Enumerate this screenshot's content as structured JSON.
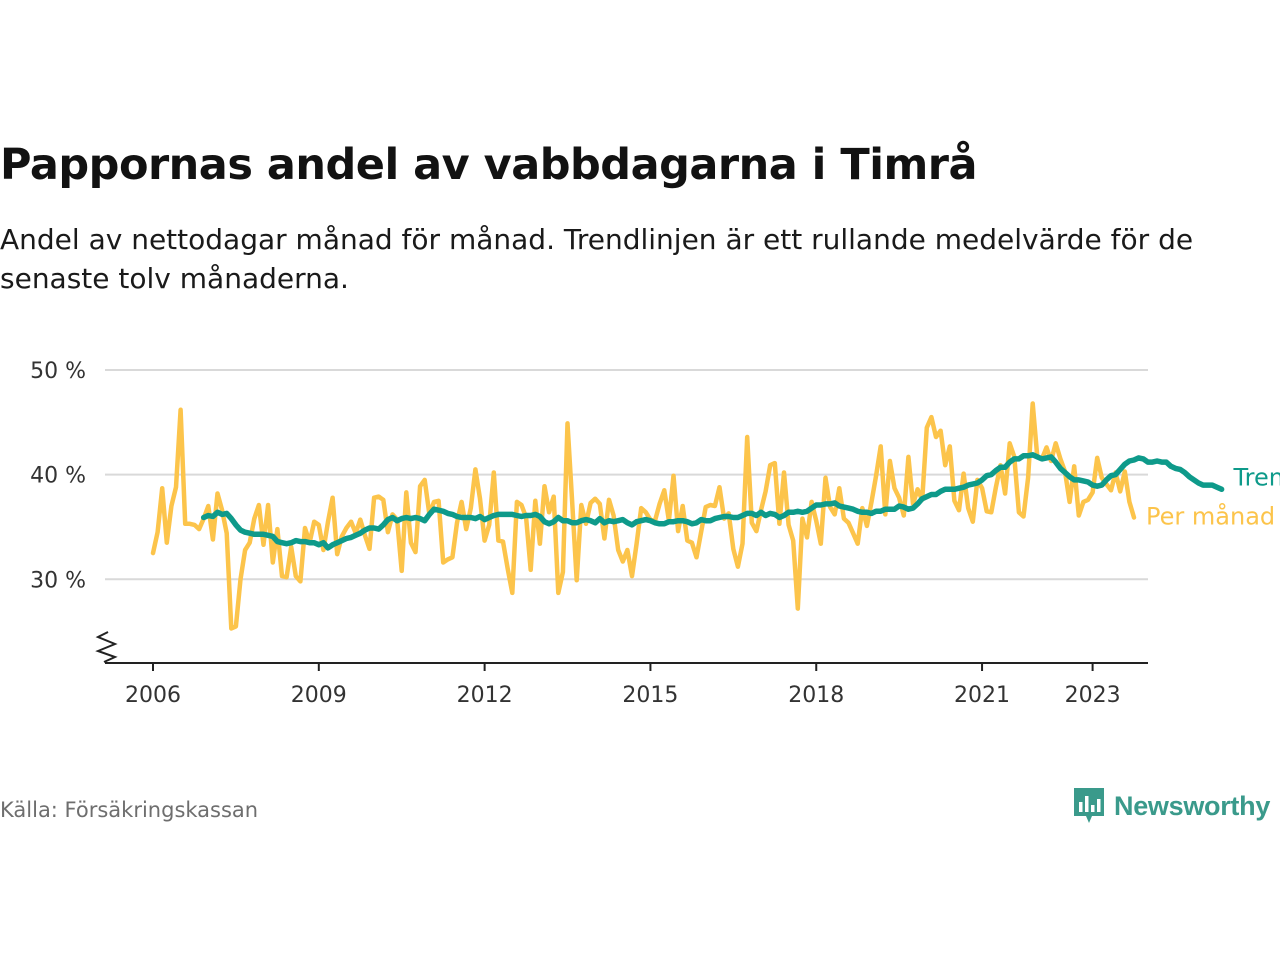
{
  "title": "Pappornas andel av vabbdagarna i Timrå",
  "subtitle": "Andel av nettodagar månad för månad. Trendlinjen är ett rullande medelvärde för de senaste tolv månaderna.",
  "source": "Källa: Försäkringskassan",
  "brand": "Newsworthy",
  "colors": {
    "monthly": "#fcc44b",
    "trend": "#0e9a8a",
    "grid": "#d9d9d9",
    "axis": "#222222",
    "brand": "#3a9a8b"
  },
  "chart_data": {
    "type": "line",
    "ylim": [
      22,
      50
    ],
    "yticks": [
      30,
      40,
      50
    ],
    "ytick_labels": [
      "30 %",
      "40 %",
      "50 %"
    ],
    "xlim": [
      2005.85,
      2025.0
    ],
    "xticks": [
      2006,
      2009,
      2012,
      2015,
      2018,
      2021,
      2023
    ],
    "xtick_labels": [
      "2006",
      "2009",
      "2012",
      "2015",
      "2018",
      "2021",
      "2023"
    ],
    "axis_break": true,
    "grid": true,
    "series": [
      {
        "name": "Per månad",
        "start": "2006-01",
        "values": [
          32.5,
          34.5,
          38.7,
          33.5,
          37,
          38.8,
          46.2,
          35.3,
          35.3,
          35.2,
          34.8,
          35.8,
          37,
          33.8,
          38.2,
          36.6,
          34.4,
          25.3,
          25.5,
          30,
          32.8,
          33.5,
          35.8,
          37.1,
          33.3,
          37.1,
          31.6,
          34.8,
          30.3,
          30.2,
          33.1,
          30.3,
          29.8,
          34.9,
          33.5,
          35.5,
          35.2,
          32.8,
          35.5,
          37.8,
          32.4,
          34.1,
          34.9,
          35.5,
          34.4,
          35.7,
          34.2,
          32.9,
          37.8,
          37.9,
          37.6,
          34.5,
          36.2,
          35.7,
          30.8,
          38.3,
          33.5,
          32.6,
          38.9,
          39.5,
          36.2,
          37.4,
          37.5,
          31.6,
          31.9,
          32.1,
          35.4,
          37.4,
          34.8,
          36.8,
          40.5,
          37.7,
          33.7,
          35.2,
          40.2,
          33.7,
          33.6,
          31,
          28.7,
          37.4,
          37.1,
          35.9,
          30.9,
          37.5,
          33.4,
          38.9,
          36.4,
          37.9,
          28.7,
          30.7,
          44.9,
          37.5,
          29.9,
          37.1,
          35.3,
          37.3,
          37.7,
          37.2,
          33.9,
          37.6,
          36.1,
          32.8,
          31.7,
          32.8,
          30.3,
          33.4,
          36.8,
          36.4,
          35.7,
          35.6,
          37.2,
          38.5,
          35.6,
          39.9,
          34.6,
          37,
          33.7,
          33.5,
          32.1,
          34.5,
          36.9,
          37.1,
          37,
          38.8,
          35.8,
          36.3,
          32.9,
          31.2,
          33.4,
          43.6,
          35.4,
          34.6,
          36.6,
          38.4,
          40.9,
          41.1,
          35.3,
          40.2,
          35.2,
          33.7,
          27.2,
          35.8,
          34,
          37.4,
          35.6,
          33.4,
          39.7,
          36.9,
          36.2,
          38.7,
          35.8,
          35.4,
          34.4,
          33.4,
          36.8,
          35.1,
          37.4,
          39.9,
          42.7,
          36.2,
          41.3,
          38.7,
          37.8,
          36.1,
          41.7,
          37.2,
          38.6,
          37.6,
          44.5,
          45.5,
          43.6,
          44.2,
          40.9,
          42.7,
          37.5,
          36.6,
          40.1,
          36.8,
          35.5,
          39.5,
          38.7,
          36.5,
          36.4,
          38.8,
          40.9,
          38.2,
          43,
          41.7,
          36.4,
          36,
          39.7,
          46.8,
          41.7,
          41.5,
          42.6,
          41.3,
          43,
          41.5,
          40.3,
          37.4,
          40.8,
          36.1,
          37.4,
          37.6,
          38.3,
          41.6,
          39.7,
          39.1,
          38.5,
          40.2,
          38.4,
          40.3,
          37.4,
          35.9
        ]
      },
      {
        "name": "Trend",
        "start": "2006-12",
        "values": [
          35.9,
          36.1,
          36.0,
          36.4,
          36.2,
          36.3,
          35.8,
          35.2,
          34.7,
          34.5,
          34.4,
          34.3,
          34.3,
          34.3,
          34.2,
          34.1,
          33.6,
          33.5,
          33.4,
          33.5,
          33.7,
          33.6,
          33.6,
          33.5,
          33.5,
          33.3,
          33.5,
          33.0,
          33.3,
          33.5,
          33.7,
          33.9,
          34.0,
          34.2,
          34.4,
          34.7,
          34.9,
          34.9,
          34.8,
          35.2,
          35.7,
          35.9,
          35.6,
          35.8,
          35.9,
          35.8,
          35.9,
          35.8,
          35.6,
          36.2,
          36.7,
          36.6,
          36.5,
          36.3,
          36.2,
          36.0,
          35.9,
          35.9,
          35.9,
          35.8,
          36.0,
          35.7,
          35.9,
          36.1,
          36.2,
          36.2,
          36.2,
          36.2,
          36.1,
          36.0,
          36.1,
          36.1,
          36.2,
          36.0,
          35.5,
          35.3,
          35.5,
          35.9,
          35.6,
          35.6,
          35.4,
          35.4,
          35.6,
          35.7,
          35.6,
          35.4,
          35.8,
          35.4,
          35.6,
          35.5,
          35.6,
          35.7,
          35.4,
          35.2,
          35.5,
          35.6,
          35.7,
          35.6,
          35.4,
          35.3,
          35.3,
          35.5,
          35.5,
          35.6,
          35.6,
          35.5,
          35.3,
          35.4,
          35.7,
          35.6,
          35.6,
          35.8,
          35.9,
          36.0,
          36.0,
          35.9,
          35.9,
          36.1,
          36.3,
          36.3,
          36.1,
          36.4,
          36.1,
          36.3,
          36.2,
          35.9,
          36.1,
          36.4,
          36.4,
          36.5,
          36.4,
          36.5,
          36.8,
          37.1,
          37.1,
          37.2,
          37.2,
          37.3,
          37.0,
          36.9,
          36.8,
          36.7,
          36.5,
          36.4,
          36.4,
          36.3,
          36.5,
          36.5,
          36.7,
          36.7,
          36.7,
          37.0,
          36.9,
          36.7,
          36.8,
          37.2,
          37.7,
          37.9,
          38.1,
          38.1,
          38.4,
          38.6,
          38.6,
          38.6,
          38.7,
          38.8,
          39.0,
          39.1,
          39.2,
          39.5,
          39.9,
          40.0,
          40.4,
          40.7,
          40.7,
          41.2,
          41.5,
          41.5,
          41.8,
          41.8,
          41.9,
          41.7,
          41.5,
          41.6,
          41.7,
          41.2,
          40.6,
          40.2,
          39.8,
          39.5,
          39.5,
          39.4,
          39.3,
          39.0,
          38.9,
          39.0,
          39.5,
          39.9,
          40.0,
          40.5,
          41.0,
          41.3,
          41.4,
          41.6,
          41.5,
          41.2,
          41.2,
          41.3,
          41.2,
          41.2,
          40.8,
          40.6,
          40.5,
          40.2,
          39.8,
          39.5,
          39.2,
          39.0,
          39.0,
          39.0,
          38.8,
          38.6
        ],
        "label": "Trend"
      }
    ]
  }
}
